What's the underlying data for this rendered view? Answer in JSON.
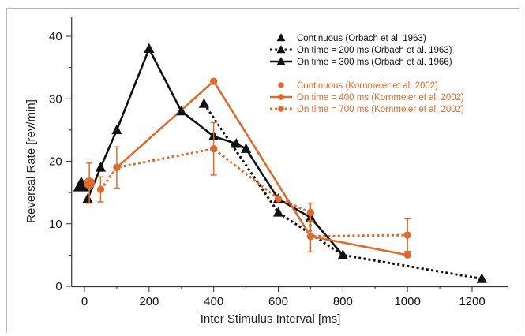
{
  "chart_data": {
    "type": "line",
    "xlabel": "Inter Stimulus Interval [ms]",
    "ylabel": "Reversal Rate [rev/min]",
    "xlim": [
      -30,
      1300
    ],
    "ylim": [
      0,
      42
    ],
    "xticks": [
      0,
      200,
      400,
      600,
      800,
      1000,
      1200
    ],
    "yticks": [
      0,
      10,
      20,
      30,
      40
    ],
    "grid": false,
    "legend_position": "top-right",
    "series": [
      {
        "name": "Continuous (Orbach et al. 1963)",
        "color": "#111111",
        "marker": "triangle",
        "linestyle": "none",
        "points": [
          {
            "x": -10,
            "y": 16.2
          }
        ]
      },
      {
        "name": "On time = 200 ms  (Orbach et al. 1963)",
        "color": "#111111",
        "marker": "triangle",
        "linestyle": "dotted",
        "points": [
          {
            "x": 370,
            "y": 29.2
          },
          {
            "x": 600,
            "y": 11.8
          },
          {
            "x": 800,
            "y": 5
          },
          {
            "x": 1230,
            "y": 1.2
          }
        ]
      },
      {
        "name": "On time = 300 ms (Orbach et al. 1966)",
        "color": "#111111",
        "marker": "triangle",
        "linestyle": "solid",
        "points": [
          {
            "x": 10,
            "y": 14
          },
          {
            "x": 50,
            "y": 19
          },
          {
            "x": 100,
            "y": 25
          },
          {
            "x": 200,
            "y": 38
          },
          {
            "x": 300,
            "y": 28
          },
          {
            "x": 400,
            "y": 24
          },
          {
            "x": 470,
            "y": 22.8
          },
          {
            "x": 500,
            "y": 22
          },
          {
            "x": 600,
            "y": 14
          },
          {
            "x": 700,
            "y": 11
          },
          {
            "x": 800,
            "y": 5
          }
        ]
      },
      {
        "name": "Continuous (Kornmeier et al. 2002)",
        "color": "#e06a2c",
        "marker": "circle",
        "linestyle": "none",
        "points": [
          {
            "x": 15,
            "y": 16.5,
            "err": 3.2
          }
        ]
      },
      {
        "name": "On time = 400 ms (Kornmeier et al. 2002)",
        "color": "#e06a2c",
        "marker": "circle",
        "linestyle": "solid",
        "points": [
          {
            "x": 100,
            "y": 19
          },
          {
            "x": 400,
            "y": 32.8
          },
          {
            "x": 700,
            "y": 8
          },
          {
            "x": 1000,
            "y": 5
          }
        ]
      },
      {
        "name": "On time = 700 ms (Kornmeier et al. 2002)",
        "color": "#e06a2c",
        "marker": "circle",
        "linestyle": "dotted",
        "points": [
          {
            "x": 50,
            "y": 15.5,
            "err": 2
          },
          {
            "x": 100,
            "y": 19,
            "err": 3.3
          },
          {
            "x": 400,
            "y": 22,
            "err": 4.2
          },
          {
            "x": 600,
            "y": 14,
            "err": 0
          },
          {
            "x": 700,
            "y": 11.8,
            "err": 1.5
          },
          {
            "x": 700,
            "y": 8,
            "err": 2.5
          },
          {
            "x": 1000,
            "y": 8.2,
            "err": 2.6
          }
        ]
      }
    ]
  }
}
